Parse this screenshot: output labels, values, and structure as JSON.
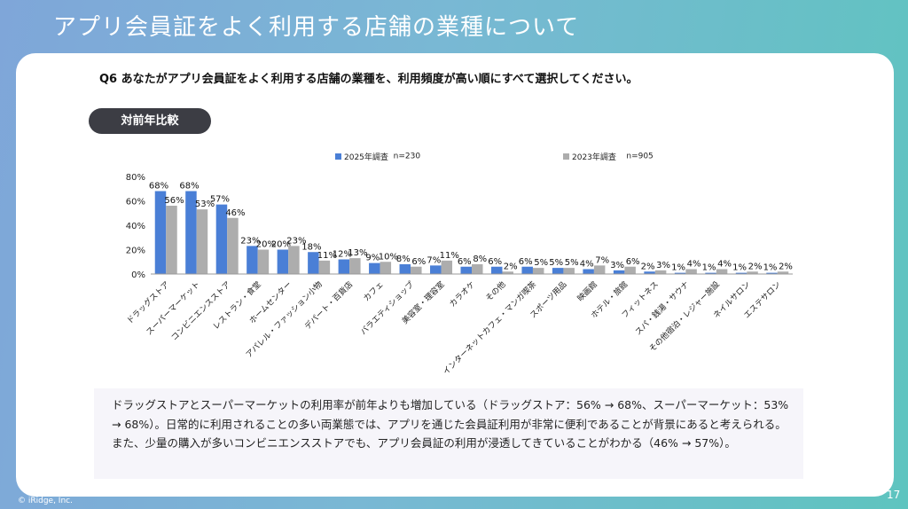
{
  "title": "アプリ会員証をよく利用する店舗の業種について",
  "question": "Q6 あなたがアプリ会員証をよく利用する店舗の業種を、利用頻度が高い順にすべて選択してください。",
  "tab_label": "対前年比較",
  "summary": "ドラッグストアとスーパーマーケットの利用率が前年よりも増加している（ドラッグストア：56% → 68%、スーパーマーケット：53% → 68%）。日常的に利用されることの多い両業態では、アプリを通じた会員証利用が非常に便利であることが背景にあると考えられる。また、少量の購入が多いコンビニエンスストアでも、アプリ会員証の利用が浸透してきていることがわかる（46% → 57%）。",
  "footer": {
    "copyright": "© iRidge, Inc.",
    "page_number": "17"
  },
  "colors": {
    "series_2025": "#4a7fd6",
    "series_2023": "#adadad"
  },
  "chart_data": {
    "type": "bar",
    "ylim": [
      0,
      80
    ],
    "yticks": [
      "0%",
      "20%",
      "40%",
      "60%",
      "80%"
    ],
    "legend_position": "top",
    "categories": [
      "ドラッグストア",
      "スーパーマーケット",
      "コンビニエンスストア",
      "レストラン・食堂",
      "ホームセンター",
      "アパレル・ファッション小物",
      "デパート・百貨店",
      "カフェ",
      "バラエティショップ",
      "美容室・理容室",
      "カラオケ",
      "その他",
      "インターネットカフェ・マンガ喫茶",
      "スポーツ用品",
      "映画館",
      "ホテル・旅館",
      "フィットネス",
      "スパ・銭湯・サウナ",
      "その他宿泊・レジャー施設",
      "ネイルサロン",
      "エステサロン"
    ],
    "series": [
      {
        "name": "2025年調査",
        "n": "n=230",
        "values": [
          68,
          68,
          57,
          23,
          20,
          18,
          12,
          9,
          8,
          7,
          6,
          6,
          6,
          5,
          4,
          3,
          2,
          1,
          1,
          1,
          1
        ]
      },
      {
        "name": "2023年調査",
        "n": "n=905",
        "values": [
          56,
          53,
          46,
          20,
          23,
          11,
          13,
          10,
          6,
          11,
          8,
          2,
          5,
          5,
          7,
          6,
          3,
          4,
          4,
          2,
          2
        ]
      }
    ]
  }
}
